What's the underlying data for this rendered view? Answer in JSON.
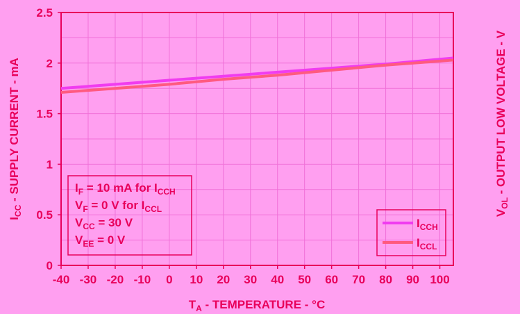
{
  "colors": {
    "background": "#ff9ff0",
    "text": "#e8005a",
    "grid": "#f070d8",
    "axis": "#e8005a",
    "icch": "#f03cf0",
    "iccl": "#ff5a80"
  },
  "chart_data": {
    "type": "line",
    "xlabel": {
      "main": "T",
      "sub": "A",
      "rest": " - TEMPERATURE - °C"
    },
    "ylabel": {
      "main": "I",
      "sub": "CC",
      "rest": " - SUPPLY CURRENT - mA"
    },
    "y2label": {
      "main": "V",
      "sub": "OL",
      "rest": " - OUTPUT LOW VOLTAGE - V"
    },
    "xlim": [
      -40,
      105
    ],
    "ylim": [
      0,
      2.5
    ],
    "xticks": [
      "-40",
      "-30",
      "-20",
      "-10",
      "0",
      "10",
      "20",
      "30",
      "40",
      "50",
      "60",
      "70",
      "80",
      "90",
      "100"
    ],
    "yticks": [
      "0",
      "0.5",
      "1",
      "1.5",
      "2",
      "2.5"
    ],
    "grid": true,
    "legend_position": "bottom-right",
    "series": [
      {
        "name": {
          "main": "I",
          "sub": "CCH"
        },
        "color": "#f03cf0",
        "x": [
          -40,
          -20,
          0,
          20,
          40,
          60,
          80,
          105
        ],
        "y": [
          1.75,
          1.79,
          1.83,
          1.87,
          1.91,
          1.95,
          1.99,
          2.05
        ]
      },
      {
        "name": {
          "main": "I",
          "sub": "CCL"
        },
        "color": "#ff5a80",
        "x": [
          -40,
          -20,
          0,
          20,
          40,
          60,
          80,
          105
        ],
        "y": [
          1.71,
          1.75,
          1.79,
          1.84,
          1.88,
          1.93,
          1.98,
          2.03
        ]
      }
    ],
    "annotations": [
      {
        "parts": [
          {
            "t": "I"
          },
          {
            "t": "F",
            "sub": true
          },
          {
            "t": "  = 10 mA for I"
          },
          {
            "t": "CCH",
            "sub": true
          }
        ]
      },
      {
        "parts": [
          {
            "t": "V"
          },
          {
            "t": "F",
            "sub": true
          },
          {
            "t": " = 0 V for I"
          },
          {
            "t": "CCL",
            "sub": true
          }
        ]
      },
      {
        "parts": [
          {
            "t": "V"
          },
          {
            "t": "CC",
            "sub": true
          },
          {
            "t": " = 30 V"
          }
        ]
      },
      {
        "parts": [
          {
            "t": "V"
          },
          {
            "t": "EE",
            "sub": true
          },
          {
            "t": " = 0 V"
          }
        ]
      }
    ]
  }
}
